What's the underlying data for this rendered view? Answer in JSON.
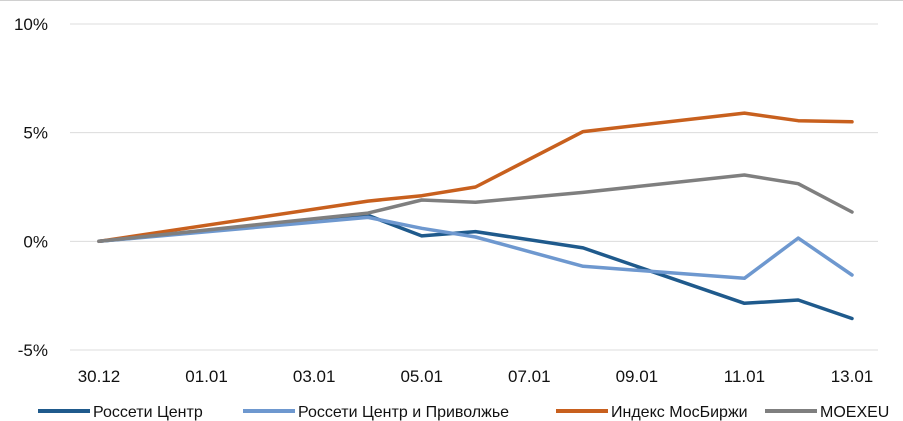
{
  "chart_data": {
    "type": "line",
    "title": "",
    "xlabel": "",
    "ylabel": "",
    "ylim": [
      -5,
      10
    ],
    "yticks": [
      {
        "value": 10,
        "label": "10%"
      },
      {
        "value": 5,
        "label": "5%"
      },
      {
        "value": 0,
        "label": "0%"
      },
      {
        "value": -5,
        "label": "-5%"
      }
    ],
    "x": [
      "30.12",
      "31.12",
      "01.01",
      "02.01",
      "03.01",
      "04.01",
      "05.01",
      "06.01",
      "07.01",
      "08.01",
      "09.01",
      "10.01",
      "11.01",
      "12.01",
      "13.01"
    ],
    "xticks": [
      "30.12",
      "01.01",
      "03.01",
      "05.01",
      "07.01",
      "09.01",
      "11.01",
      "13.01"
    ],
    "grid": true,
    "legend": "bottom",
    "series": [
      {
        "name": "Россети Центр",
        "color": "#1f5a8c",
        "values": [
          0,
          null,
          null,
          null,
          null,
          1.2,
          0.25,
          0.45,
          null,
          -0.3,
          null,
          null,
          -2.85,
          -2.7,
          -3.55
        ]
      },
      {
        "name": "Россети Центр и Приволжье",
        "color": "#6e98cf",
        "values": [
          0,
          null,
          null,
          null,
          null,
          1.1,
          0.6,
          0.2,
          null,
          -1.15,
          null,
          null,
          -1.7,
          0.15,
          -1.55
        ]
      },
      {
        "name": "Индекс МосБиржи",
        "color": "#c8601e",
        "values": [
          0,
          null,
          null,
          null,
          null,
          1.85,
          2.1,
          2.5,
          null,
          5.05,
          null,
          null,
          5.9,
          5.55,
          5.5
        ]
      },
      {
        "name": "MOEXEU",
        "color": "#7f7f7f",
        "values": [
          0,
          null,
          null,
          null,
          null,
          1.3,
          1.9,
          1.8,
          null,
          2.25,
          null,
          null,
          3.05,
          2.65,
          1.35
        ]
      }
    ]
  }
}
